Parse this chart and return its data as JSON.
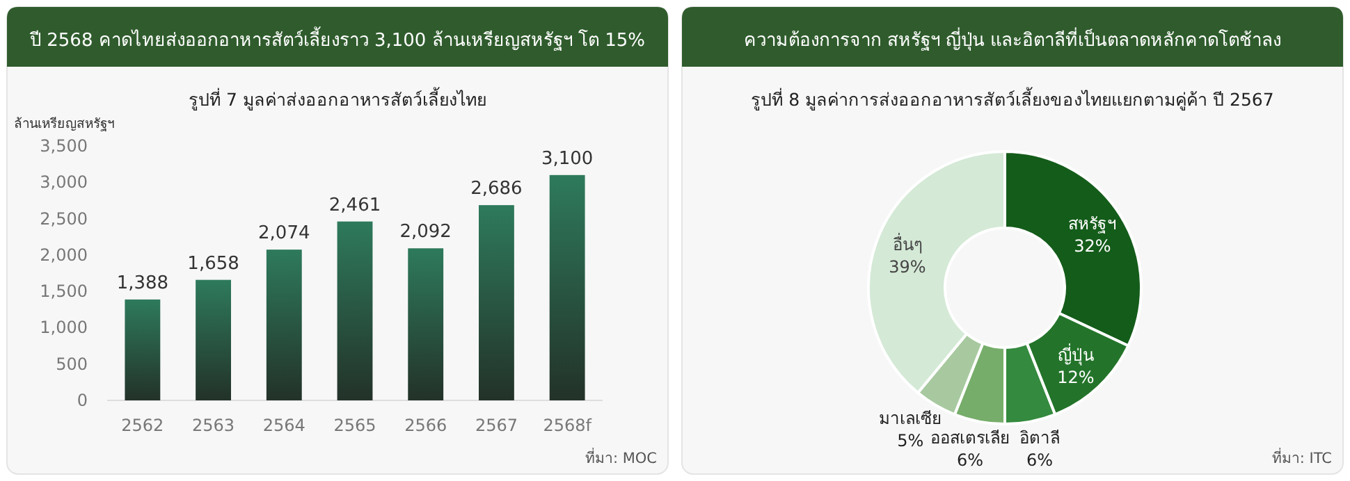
{
  "chart_data": [
    {
      "type": "bar",
      "title": "ปี 2568 คาดไทยส่งออกอาหารสัตว์เลี้ยงราว 3,100 ล้านเหรียญสหรัฐฯ โต 15%",
      "subtitle": "รูปที่ 7 มูลค่าส่งออกอาหารสัตว์เลี้ยงไทย",
      "ylabel": "ล้านเหรียญสหรัฐฯ",
      "categories": [
        "2562",
        "2563",
        "2564",
        "2565",
        "2566",
        "2567",
        "2568f"
      ],
      "values": [
        1388,
        1658,
        2074,
        2461,
        2092,
        2686,
        3100
      ],
      "color": "#2e7a5c",
      "ylim": [
        0,
        3500
      ],
      "yticks": [
        {
          "value": 0,
          "label": "0"
        },
        {
          "value": 500,
          "label": "500"
        },
        {
          "value": 1000,
          "label": "1,000"
        },
        {
          "value": 1500,
          "label": "1,500"
        },
        {
          "value": 2000,
          "label": "2,000"
        },
        {
          "value": 2500,
          "label": "2,500"
        },
        {
          "value": 3000,
          "label": "3,000"
        },
        {
          "value": 3500,
          "label": "3,500"
        }
      ],
      "value_labels": [
        "1,388",
        "1,658",
        "2,074",
        "2,461",
        "2,092",
        "2,686",
        "3,100"
      ],
      "grid": false,
      "annotations": [
        "ที่มา: MOC"
      ]
    },
    {
      "type": "donut",
      "title": "ความต้องการจาก สหรัฐฯ ญี่ปุ่น และอิตาลีที่เป็นตลาดหลักคาดโตช้าลง",
      "subtitle": "รูปที่ 8 มูลค่าการส่งออกอาหารสัตว์เลี้ยงของไทยแยกตามคู่ค้า  ปี 2567",
      "categories": [
        "สหรัฐฯ",
        "ญี่ปุ่น",
        "อิตาลี",
        "ออสเตรเลีย",
        "มาเลเซีย",
        "อื่นๆ"
      ],
      "values": [
        32,
        12,
        6,
        6,
        5,
        39
      ],
      "colors": [
        "#145c1a",
        "#23742a",
        "#348a3e",
        "#76ad6a",
        "#a8c9a0",
        "#d4e9d6"
      ],
      "value_labels": [
        "32%",
        "12%",
        "6%",
        "6%",
        "5%",
        "39%"
      ],
      "annotations": [
        "ที่มา: ITC"
      ]
    }
  ]
}
